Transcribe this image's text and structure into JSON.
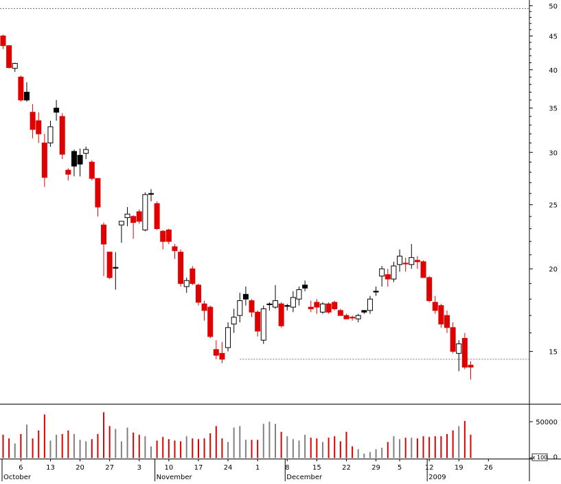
{
  "chart_data": {
    "type": "candlestick",
    "price_axis": {
      "ticks": [
        15,
        20,
        25,
        30,
        35,
        40,
        45,
        50
      ],
      "labels": [
        "15",
        "20",
        "25",
        "30",
        "35",
        "40",
        "45",
        "50"
      ],
      "scale": "log",
      "range": [
        12.5,
        51
      ]
    },
    "volume_axis": {
      "ticks": [
        0,
        50000
      ],
      "labels": [
        "0",
        "50000"
      ],
      "multiplier_label": "x 100",
      "range": [
        0,
        70000
      ]
    },
    "x_axis": {
      "tick_labels": [
        "6",
        "13",
        "20",
        "27",
        "3",
        "10",
        "17",
        "24",
        "1",
        "8",
        "15",
        "22",
        "29",
        "5",
        "12",
        "19",
        "26"
      ],
      "tick_bars": [
        3,
        8,
        13,
        18,
        23,
        28,
        33,
        38,
        43,
        48,
        53,
        58,
        63,
        67,
        72,
        77,
        82
      ],
      "month_labels": [
        "October",
        "November",
        "December",
        "2009"
      ],
      "month_bars": [
        0,
        26,
        48,
        72
      ],
      "total_slots": 90
    },
    "reference_lines": [
      {
        "value": 49.5,
        "style": "dotted"
      },
      {
        "value": 14.6,
        "style": "dotted",
        "from_bar": 40
      }
    ],
    "candles": [
      {
        "o": 45.0,
        "h": 45.2,
        "l": 43.0,
        "c": 43.5,
        "v": 32000,
        "color": "red"
      },
      {
        "o": 43.5,
        "h": 43.6,
        "l": 40.2,
        "c": 40.3,
        "v": 27000,
        "color": "red"
      },
      {
        "o": 40.2,
        "h": 41.0,
        "l": 39.7,
        "c": 40.9,
        "v": 20000,
        "color": "white"
      },
      {
        "o": 39.0,
        "h": 39.2,
        "l": 35.8,
        "c": 36.0,
        "v": 33000,
        "color": "red"
      },
      {
        "o": 37.0,
        "h": 38.3,
        "l": 35.8,
        "c": 36.0,
        "v": 46000,
        "color": "black"
      },
      {
        "o": 34.5,
        "h": 35.5,
        "l": 31.5,
        "c": 32.5,
        "v": 27000,
        "color": "red"
      },
      {
        "o": 33.5,
        "h": 34.5,
        "l": 31.0,
        "c": 32.0,
        "v": 38000,
        "color": "red"
      },
      {
        "o": 31.0,
        "h": 32.0,
        "l": 26.6,
        "c": 27.5,
        "v": 60000,
        "color": "red"
      },
      {
        "o": 31.0,
        "h": 33.5,
        "l": 30.6,
        "c": 32.8,
        "v": 24000,
        "color": "white"
      },
      {
        "o": 35.0,
        "h": 36.0,
        "l": 33.5,
        "c": 34.5,
        "v": 32000,
        "color": "black"
      },
      {
        "o": 34.0,
        "h": 34.4,
        "l": 29.3,
        "c": 29.8,
        "v": 33000,
        "color": "red"
      },
      {
        "o": 28.2,
        "h": 28.4,
        "l": 27.2,
        "c": 27.8,
        "v": 38000,
        "color": "red"
      },
      {
        "o": 30.1,
        "h": 30.3,
        "l": 27.6,
        "c": 28.6,
        "v": 33000,
        "color": "black"
      },
      {
        "o": 29.7,
        "h": 30.4,
        "l": 27.6,
        "c": 28.8,
        "v": 25000,
        "color": "black"
      },
      {
        "o": 29.9,
        "h": 30.6,
        "l": 29.3,
        "c": 30.3,
        "v": 23000,
        "color": "white"
      },
      {
        "o": 29.0,
        "h": 29.2,
        "l": 27.2,
        "c": 27.4,
        "v": 26000,
        "color": "red"
      },
      {
        "o": 27.4,
        "h": 27.4,
        "l": 24.0,
        "c": 24.8,
        "v": 33000,
        "color": "red"
      },
      {
        "o": 23.3,
        "h": 23.5,
        "l": 19.5,
        "c": 21.8,
        "v": 63000,
        "color": "red"
      },
      {
        "o": 21.2,
        "h": 21.2,
        "l": 19.3,
        "c": 19.4,
        "v": 44000,
        "color": "red"
      },
      {
        "o": 20.1,
        "h": 21.2,
        "l": 18.6,
        "c": 20.1,
        "v": 40000,
        "color": "black"
      },
      {
        "o": 23.3,
        "h": 23.5,
        "l": 21.9,
        "c": 23.6,
        "v": 23000,
        "color": "white"
      },
      {
        "o": 23.9,
        "h": 24.8,
        "l": 23.2,
        "c": 24.2,
        "v": 42000,
        "color": "white"
      },
      {
        "o": 24.0,
        "h": 24.1,
        "l": 22.2,
        "c": 23.5,
        "v": 35000,
        "color": "red"
      },
      {
        "o": 24.4,
        "h": 24.6,
        "l": 23.4,
        "c": 23.6,
        "v": 32000,
        "color": "red"
      },
      {
        "o": 22.9,
        "h": 26.1,
        "l": 22.8,
        "c": 25.9,
        "v": 30000,
        "color": "white"
      },
      {
        "o": 26.0,
        "h": 26.4,
        "l": 25.3,
        "c": 26.0,
        "v": 16000,
        "color": "black"
      },
      {
        "o": 25.1,
        "h": 25.3,
        "l": 22.9,
        "c": 23.0,
        "v": 24000,
        "color": "red"
      },
      {
        "o": 22.8,
        "h": 22.9,
        "l": 21.4,
        "c": 22.0,
        "v": 29000,
        "color": "red"
      },
      {
        "o": 22.9,
        "h": 23.0,
        "l": 21.8,
        "c": 22.0,
        "v": 26000,
        "color": "red"
      },
      {
        "o": 21.6,
        "h": 21.8,
        "l": 20.7,
        "c": 21.3,
        "v": 24000,
        "color": "red"
      },
      {
        "o": 21.2,
        "h": 21.4,
        "l": 18.8,
        "c": 19.0,
        "v": 23000,
        "color": "red"
      },
      {
        "o": 18.8,
        "h": 19.4,
        "l": 18.4,
        "c": 19.2,
        "v": 30000,
        "color": "white"
      },
      {
        "o": 20.0,
        "h": 20.2,
        "l": 18.9,
        "c": 19.0,
        "v": 27000,
        "color": "red"
      },
      {
        "o": 18.9,
        "h": 19.0,
        "l": 17.6,
        "c": 17.8,
        "v": 26000,
        "color": "red"
      },
      {
        "o": 17.7,
        "h": 17.9,
        "l": 16.7,
        "c": 17.3,
        "v": 27000,
        "color": "red"
      },
      {
        "o": 17.5,
        "h": 17.6,
        "l": 15.7,
        "c": 15.8,
        "v": 34000,
        "color": "red"
      },
      {
        "o": 15.1,
        "h": 15.6,
        "l": 14.6,
        "c": 14.8,
        "v": 44000,
        "color": "red"
      },
      {
        "o": 14.9,
        "h": 15.5,
        "l": 14.4,
        "c": 14.6,
        "v": 27000,
        "color": "red"
      },
      {
        "o": 15.2,
        "h": 16.6,
        "l": 15.0,
        "c": 16.3,
        "v": 22000,
        "color": "white"
      },
      {
        "o": 16.5,
        "h": 17.4,
        "l": 16.0,
        "c": 16.9,
        "v": 42000,
        "color": "white"
      },
      {
        "o": 17.0,
        "h": 18.4,
        "l": 16.6,
        "c": 17.9,
        "v": 44000,
        "color": "white"
      },
      {
        "o": 18.3,
        "h": 18.8,
        "l": 17.6,
        "c": 18.0,
        "v": 25000,
        "color": "black"
      },
      {
        "o": 17.9,
        "h": 18.0,
        "l": 16.9,
        "c": 17.2,
        "v": 25000,
        "color": "red"
      },
      {
        "o": 17.2,
        "h": 17.3,
        "l": 15.8,
        "c": 16.1,
        "v": 25000,
        "color": "red"
      },
      {
        "o": 15.6,
        "h": 17.6,
        "l": 15.4,
        "c": 17.4,
        "v": 47000,
        "color": "white"
      },
      {
        "o": 17.7,
        "h": 17.8,
        "l": 17.3,
        "c": 17.7,
        "v": 50000,
        "color": "black"
      },
      {
        "o": 17.5,
        "h": 18.9,
        "l": 17.4,
        "c": 17.9,
        "v": 47000,
        "color": "white"
      },
      {
        "o": 17.7,
        "h": 17.8,
        "l": 16.3,
        "c": 16.4,
        "v": 36000,
        "color": "red"
      },
      {
        "o": 17.6,
        "h": 17.7,
        "l": 17.3,
        "c": 17.6,
        "v": 30000,
        "color": "black"
      },
      {
        "o": 17.5,
        "h": 18.5,
        "l": 17.2,
        "c": 18.1,
        "v": 26000,
        "color": "white"
      },
      {
        "o": 18.0,
        "h": 18.8,
        "l": 17.6,
        "c": 18.6,
        "v": 24000,
        "color": "white"
      },
      {
        "o": 18.9,
        "h": 19.2,
        "l": 18.5,
        "c": 18.7,
        "v": 32000,
        "color": "black"
      },
      {
        "o": 17.5,
        "h": 17.9,
        "l": 17.2,
        "c": 17.4,
        "v": 28000,
        "color": "red"
      },
      {
        "o": 17.8,
        "h": 18.0,
        "l": 17.1,
        "c": 17.5,
        "v": 27000,
        "color": "red"
      },
      {
        "o": 17.2,
        "h": 17.8,
        "l": 17.1,
        "c": 17.7,
        "v": 22000,
        "color": "white"
      },
      {
        "o": 17.7,
        "h": 17.8,
        "l": 17.1,
        "c": 17.2,
        "v": 28000,
        "color": "red"
      },
      {
        "o": 17.8,
        "h": 17.9,
        "l": 17.3,
        "c": 17.4,
        "v": 30000,
        "color": "red"
      },
      {
        "o": 17.3,
        "h": 17.4,
        "l": 17.0,
        "c": 17.0,
        "v": 23000,
        "color": "red"
      },
      {
        "o": 17.0,
        "h": 17.1,
        "l": 16.8,
        "c": 16.8,
        "v": 36000,
        "color": "red"
      },
      {
        "o": 16.9,
        "h": 17.0,
        "l": 16.7,
        "c": 16.9,
        "v": 16000,
        "color": "red"
      },
      {
        "o": 16.8,
        "h": 17.1,
        "l": 16.6,
        "c": 17.0,
        "v": 12000,
        "color": "white"
      },
      {
        "o": 17.2,
        "h": 17.3,
        "l": 17.1,
        "c": 17.3,
        "v": 6000,
        "color": "black"
      },
      {
        "o": 17.3,
        "h": 18.2,
        "l": 17.1,
        "c": 18.0,
        "v": 8000,
        "color": "white"
      },
      {
        "o": 18.5,
        "h": 18.8,
        "l": 18.2,
        "c": 18.5,
        "v": 12000,
        "color": "black"
      },
      {
        "o": 19.5,
        "h": 20.2,
        "l": 18.8,
        "c": 20.0,
        "v": 14000,
        "color": "white"
      },
      {
        "o": 19.6,
        "h": 20.0,
        "l": 18.8,
        "c": 19.3,
        "v": 22000,
        "color": "red"
      },
      {
        "o": 19.3,
        "h": 20.5,
        "l": 19.1,
        "c": 20.2,
        "v": 30000,
        "color": "white"
      },
      {
        "o": 20.3,
        "h": 21.4,
        "l": 19.8,
        "c": 20.9,
        "v": 26000,
        "color": "white"
      },
      {
        "o": 20.4,
        "h": 20.8,
        "l": 19.8,
        "c": 20.4,
        "v": 28000,
        "color": "red"
      },
      {
        "o": 20.3,
        "h": 21.8,
        "l": 20.0,
        "c": 20.8,
        "v": 28000,
        "color": "white"
      },
      {
        "o": 20.6,
        "h": 20.9,
        "l": 20.0,
        "c": 20.5,
        "v": 27000,
        "color": "red"
      },
      {
        "o": 20.5,
        "h": 20.6,
        "l": 19.4,
        "c": 19.4,
        "v": 30000,
        "color": "red"
      },
      {
        "o": 19.4,
        "h": 19.5,
        "l": 17.8,
        "c": 17.9,
        "v": 29000,
        "color": "red"
      },
      {
        "o": 17.8,
        "h": 18.2,
        "l": 17.1,
        "c": 17.3,
        "v": 30000,
        "color": "red"
      },
      {
        "o": 17.6,
        "h": 17.7,
        "l": 16.3,
        "c": 16.5,
        "v": 30000,
        "color": "red"
      },
      {
        "o": 17.0,
        "h": 17.3,
        "l": 16.0,
        "c": 16.3,
        "v": 33000,
        "color": "red"
      },
      {
        "o": 16.3,
        "h": 16.6,
        "l": 14.9,
        "c": 15.0,
        "v": 38000,
        "color": "red"
      },
      {
        "o": 14.9,
        "h": 15.6,
        "l": 14.0,
        "c": 15.4,
        "v": 44000,
        "color": "white"
      },
      {
        "o": 15.7,
        "h": 16.0,
        "l": 14.1,
        "c": 14.2,
        "v": 51000,
        "color": "red"
      },
      {
        "o": 14.3,
        "h": 14.5,
        "l": 13.6,
        "c": 14.2,
        "v": 32000,
        "color": "red"
      }
    ]
  }
}
